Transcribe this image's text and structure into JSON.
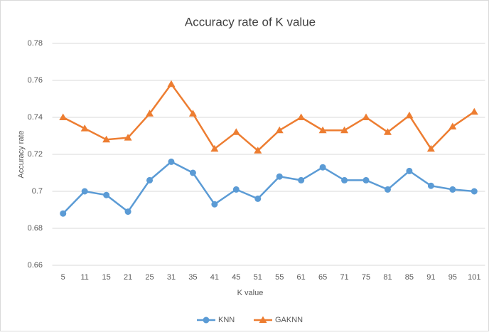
{
  "chart_data": {
    "type": "line",
    "title": "Accuracy rate of K value",
    "xlabel": "K value",
    "ylabel": "Accuracy rate",
    "categories": [
      "5",
      "11",
      "15",
      "21",
      "25",
      "31",
      "35",
      "41",
      "45",
      "51",
      "55",
      "61",
      "65",
      "71",
      "75",
      "81",
      "85",
      "91",
      "95",
      "101"
    ],
    "series": [
      {
        "name": "KNN",
        "color": "#5b9bd5",
        "marker": "circle",
        "values": [
          0.688,
          0.7,
          0.698,
          0.689,
          0.706,
          0.716,
          0.71,
          0.693,
          0.701,
          0.696,
          0.708,
          0.706,
          0.713,
          0.706,
          0.706,
          0.701,
          0.711,
          0.703,
          0.701,
          0.7
        ]
      },
      {
        "name": "GAKNN",
        "color": "#ed7d31",
        "marker": "triangle",
        "values": [
          0.74,
          0.734,
          0.728,
          0.729,
          0.742,
          0.758,
          0.742,
          0.723,
          0.732,
          0.722,
          0.733,
          0.74,
          0.733,
          0.733,
          0.74,
          0.732,
          0.741,
          0.723,
          0.735,
          0.743
        ]
      }
    ],
    "ylim": [
      0.66,
      0.78
    ],
    "yticks": [
      0.66,
      0.68,
      0.7,
      0.72,
      0.74,
      0.76,
      0.78
    ],
    "grid": true,
    "legend": "bottom"
  }
}
